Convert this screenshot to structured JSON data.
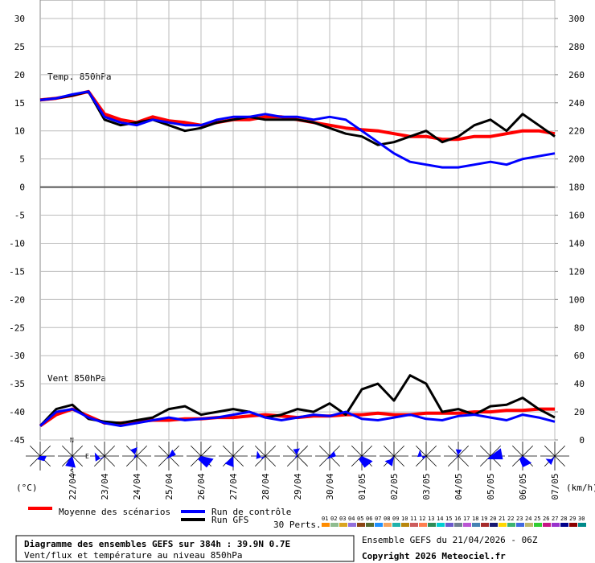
{
  "chart_data": {
    "type": "line",
    "title": "Diagramme des ensembles GEFS sur 384h : 39.9N 0.7E",
    "subtitle": "Vent/flux et température au niveau 850hPa",
    "run_info": "Ensemble GEFS du 21/04/2026 - 06Z",
    "copyright": "Copyright 2026 Meteociel.fr",
    "temp_label": "Temp. 850hPa",
    "wind_label": "Vent 850hPa",
    "ylabel": "(°C)",
    "y2label": "(km/h)",
    "rose_labels": [
      "N",
      "E",
      "S"
    ],
    "x": [
      0,
      12,
      24,
      36,
      48,
      60,
      72,
      84,
      96,
      108,
      120,
      132,
      144,
      156,
      168,
      180,
      192,
      204,
      216,
      228,
      240,
      252,
      264,
      276,
      288,
      300,
      312,
      324,
      336,
      348,
      360,
      372,
      384
    ],
    "xlim": [
      0,
      384
    ],
    "xticks": [
      {
        "value": 24,
        "label": "22/04"
      },
      {
        "value": 48,
        "label": "23/04"
      },
      {
        "value": 72,
        "label": "24/04"
      },
      {
        "value": 96,
        "label": "25/04"
      },
      {
        "value": 120,
        "label": "26/04"
      },
      {
        "value": 144,
        "label": "27/04"
      },
      {
        "value": 168,
        "label": "28/04"
      },
      {
        "value": 192,
        "label": "29/04"
      },
      {
        "value": 216,
        "label": "30/04"
      },
      {
        "value": 240,
        "label": "01/05"
      },
      {
        "value": 264,
        "label": "02/05"
      },
      {
        "value": 288,
        "label": "03/05"
      },
      {
        "value": 312,
        "label": "04/05"
      },
      {
        "value": 336,
        "label": "05/05"
      },
      {
        "value": 360,
        "label": "06/05"
      },
      {
        "value": 384,
        "label": "07/05"
      }
    ],
    "ylim": [
      -45,
      30
    ],
    "yticks": [
      30,
      25,
      20,
      15,
      10,
      5,
      0,
      -5,
      -10,
      -15,
      -20,
      -25,
      -30,
      -35,
      -40,
      -45
    ],
    "y2lim": [
      0,
      300
    ],
    "y2ticks": [
      300,
      280,
      260,
      240,
      220,
      200,
      180,
      160,
      140,
      120,
      100,
      80,
      60,
      40,
      20,
      0
    ],
    "grid": true,
    "series": [
      {
        "name": "Moyenne des scénarios",
        "color": "#ff0000",
        "values": [
          15.5,
          15.8,
          16.3,
          17,
          13,
          12,
          11.5,
          12.5,
          11.8,
          11.5,
          11,
          11.5,
          12,
          12,
          12.5,
          12.5,
          12,
          11.5,
          11,
          10.5,
          10.2,
          10,
          9.5,
          9,
          9,
          8.5,
          8.5,
          9,
          9,
          9.5,
          10,
          10,
          9.5
        ],
        "wind": [
          10,
          18,
          22,
          17,
          12,
          12,
          13,
          14,
          14,
          15,
          15,
          16,
          16,
          17,
          18,
          17,
          16,
          17,
          17,
          18,
          18,
          19,
          18,
          18,
          19,
          19,
          19,
          20,
          20,
          21,
          21,
          22,
          22
        ]
      },
      {
        "name": "Run de contrôle",
        "color": "#0000ff",
        "values": [
          15.5,
          15.8,
          16.5,
          17,
          12.5,
          11.5,
          11,
          12,
          11.5,
          11,
          11,
          12,
          12.5,
          12.5,
          13,
          12.5,
          12.5,
          12,
          12.5,
          12,
          10,
          8,
          6,
          4.5,
          4,
          3.5,
          3.5,
          4,
          4.5,
          4,
          5,
          5.5,
          6
        ],
        "wind": [
          10,
          20,
          22,
          16,
          12,
          10,
          12,
          14,
          16,
          14,
          15,
          16,
          18,
          20,
          16,
          14,
          16,
          18,
          17,
          20,
          15,
          14,
          16,
          18,
          15,
          14,
          17,
          18,
          16,
          14,
          18,
          16,
          13
        ]
      },
      {
        "name": "Run GFS",
        "color": "#000000",
        "values": [
          15.5,
          15.8,
          16.3,
          17,
          12,
          11,
          11.5,
          12,
          11,
          10,
          10.5,
          11.5,
          12,
          12.5,
          12,
          12,
          12,
          11.5,
          10.5,
          9.5,
          9,
          7.5,
          8,
          9,
          10,
          8,
          9,
          11,
          12,
          10,
          13,
          11,
          9
        ],
        "wind": [
          10,
          22,
          25,
          15,
          13,
          12,
          14,
          16,
          22,
          24,
          18,
          20,
          22,
          20,
          16,
          18,
          22,
          20,
          26,
          18,
          36,
          40,
          28,
          46,
          40,
          20,
          22,
          18,
          24,
          25,
          30,
          22,
          16
        ]
      }
    ],
    "perturbations": {
      "label": "30 Perts.",
      "members": [
        {
          "name": "01",
          "color": "#ff8c00"
        },
        {
          "name": "02",
          "color": "#8fbc8f"
        },
        {
          "name": "03",
          "color": "#daa520"
        },
        {
          "name": "04",
          "color": "#9370db"
        },
        {
          "name": "05",
          "color": "#8b4513"
        },
        {
          "name": "06",
          "color": "#556b2f"
        },
        {
          "name": "07",
          "color": "#1e90ff"
        },
        {
          "name": "08",
          "color": "#f4a460"
        },
        {
          "name": "09",
          "color": "#20b2aa"
        },
        {
          "name": "10",
          "color": "#b8860b"
        },
        {
          "name": "11",
          "color": "#cd5c5c"
        },
        {
          "name": "12",
          "color": "#ff7f50"
        },
        {
          "name": "13",
          "color": "#2e8b57"
        },
        {
          "name": "14",
          "color": "#00ced1"
        },
        {
          "name": "15",
          "color": "#6a5acd"
        },
        {
          "name": "16",
          "color": "#708090"
        },
        {
          "name": "17",
          "color": "#ba55d3"
        },
        {
          "name": "18",
          "color": "#4682b4"
        },
        {
          "name": "19",
          "color": "#a52a2a"
        },
        {
          "name": "20",
          "color": "#191970"
        },
        {
          "name": "21",
          "color": "#ffd700"
        },
        {
          "name": "22",
          "color": "#3cb371"
        },
        {
          "name": "23",
          "color": "#4169e1"
        },
        {
          "name": "24",
          "color": "#bdb76b"
        },
        {
          "name": "25",
          "color": "#32cd32"
        },
        {
          "name": "26",
          "color": "#c71585"
        },
        {
          "name": "27",
          "color": "#9932cc"
        },
        {
          "name": "28",
          "color": "#00008b"
        },
        {
          "name": "29",
          "color": "#8b0000"
        },
        {
          "name": "30",
          "color": "#008b8b"
        }
      ]
    }
  }
}
